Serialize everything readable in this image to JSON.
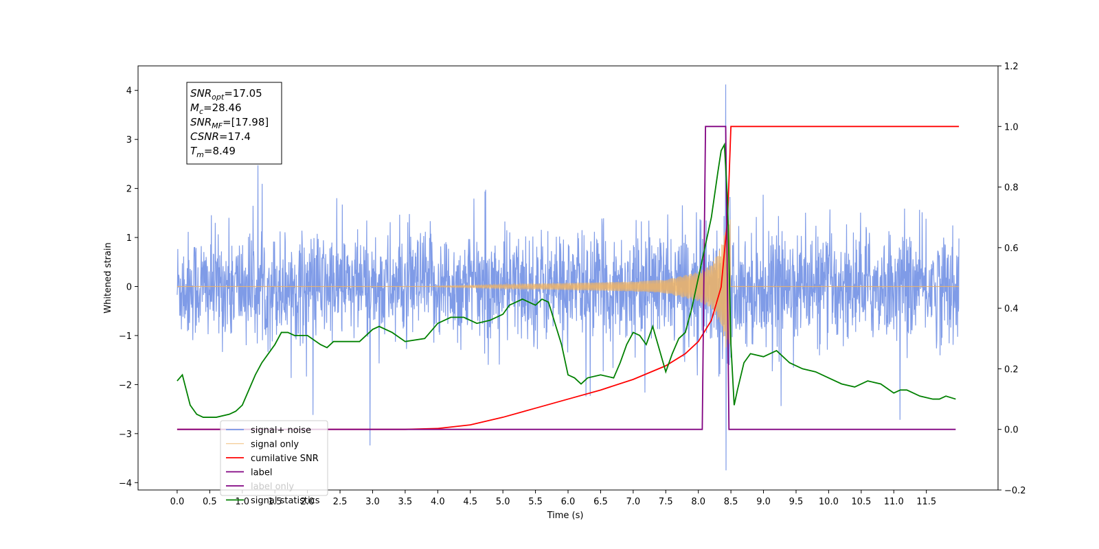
{
  "chart_data": {
    "type": "line",
    "xlabel": "Time (s)",
    "ylabel": "Whitened strain",
    "xlim": [
      -0.6,
      12.6
    ],
    "ylim": [
      -4.15,
      4.5
    ],
    "y2lim": [
      -0.2,
      1.2
    ],
    "x_ticks": [
      "0.0",
      "0.5",
      "1.0",
      "1.5",
      "2.0",
      "2.5",
      "3.0",
      "3.5",
      "4.0",
      "4.5",
      "5.0",
      "5.5",
      "6.0",
      "6.5",
      "7.0",
      "7.5",
      "8.0",
      "8.5",
      "9.0",
      "9.5",
      "10.0",
      "10.5",
      "11.0",
      "11.5"
    ],
    "y_ticks": [
      "4",
      "3",
      "2",
      "1",
      "0",
      "−1",
      "−2",
      "−3",
      "−4"
    ],
    "y2_ticks": [
      "1.2",
      "1.0",
      "0.8",
      "0.6",
      "0.4",
      "0.2",
      "0.0",
      "−0.2"
    ],
    "grid": false,
    "legend_position": "lower-left",
    "annotation": {
      "lines": [
        {
          "var": "SNR",
          "sub": "opt",
          "value": "=17.05"
        },
        {
          "var": "M",
          "sub": "c",
          "value": "=28.46"
        },
        {
          "var": "SNR",
          "sub": "MF",
          "value": "=[17.98]"
        },
        {
          "var": "CSNR",
          "sub": "",
          "value": "=17.4"
        },
        {
          "var": "T",
          "sub": "m",
          "value": "=8.49"
        }
      ]
    },
    "series": [
      {
        "name": "signal+ noise",
        "axis": "left",
        "color": "#7896e6",
        "description_note_free": true,
        "x_start": 0.0,
        "x_end": 12.0,
        "noise_sigma": 0.55,
        "peak": {
          "x": 8.42,
          "max": 4.12,
          "min": -3.75
        }
      },
      {
        "name": "signal only",
        "axis": "left",
        "color": "#f0b464",
        "x_start": 0.0,
        "x_end": 8.49,
        "chirp_amp": [
          [
            4.0,
            0.01
          ],
          [
            5.0,
            0.04
          ],
          [
            6.0,
            0.07
          ],
          [
            7.0,
            0.1
          ],
          [
            7.5,
            0.14
          ],
          [
            8.0,
            0.3
          ],
          [
            8.2,
            0.45
          ],
          [
            8.35,
            0.8
          ],
          [
            8.45,
            1.4
          ]
        ]
      },
      {
        "name": "cumilative SNR",
        "axis": "right",
        "color": "#ff0000",
        "x": [
          0.0,
          3.5,
          4.0,
          4.5,
          5.0,
          5.5,
          6.0,
          6.5,
          7.0,
          7.5,
          7.8,
          8.0,
          8.2,
          8.35,
          8.45,
          8.5,
          12.0
        ],
        "y": [
          0.0,
          0.0,
          0.003,
          0.015,
          0.04,
          0.07,
          0.1,
          0.13,
          0.165,
          0.21,
          0.25,
          0.29,
          0.36,
          0.47,
          0.7,
          1.0,
          1.0
        ]
      },
      {
        "name": "label",
        "axis": "right",
        "color": "#800080",
        "x": [
          0.0,
          8.06,
          8.11,
          8.42,
          8.47,
          11.95
        ],
        "y": [
          0.0,
          0.0,
          1.0,
          1.0,
          0.0,
          0.0
        ]
      },
      {
        "name": "label only",
        "axis": "right",
        "color": "#800080",
        "x": [],
        "y": []
      },
      {
        "name": "signal statistics",
        "axis": "right",
        "color": "#008000",
        "x": [
          0.0,
          0.08,
          0.2,
          0.3,
          0.4,
          0.6,
          0.8,
          0.9,
          1.0,
          1.2,
          1.3,
          1.5,
          1.6,
          1.7,
          1.8,
          2.0,
          2.2,
          2.3,
          2.4,
          2.6,
          2.8,
          3.0,
          3.1,
          3.3,
          3.5,
          3.8,
          4.0,
          4.2,
          4.4,
          4.6,
          4.8,
          5.0,
          5.1,
          5.2,
          5.3,
          5.4,
          5.5,
          5.6,
          5.7,
          5.8,
          5.9,
          6.0,
          6.1,
          6.2,
          6.3,
          6.5,
          6.7,
          6.8,
          6.9,
          7.0,
          7.1,
          7.2,
          7.3,
          7.5,
          7.6,
          7.7,
          7.8,
          7.9,
          8.0,
          8.1,
          8.2,
          8.3,
          8.35,
          8.4,
          8.45,
          8.5,
          8.55,
          8.6,
          8.7,
          8.8,
          9.0,
          9.2,
          9.4,
          9.6,
          9.8,
          10.0,
          10.2,
          10.4,
          10.6,
          10.8,
          11.0,
          11.1,
          11.2,
          11.4,
          11.6,
          11.7,
          11.8,
          11.95
        ],
        "y": [
          0.16,
          0.18,
          0.08,
          0.05,
          0.04,
          0.04,
          0.05,
          0.06,
          0.08,
          0.18,
          0.22,
          0.28,
          0.32,
          0.32,
          0.31,
          0.31,
          0.28,
          0.27,
          0.29,
          0.29,
          0.29,
          0.33,
          0.34,
          0.32,
          0.29,
          0.3,
          0.35,
          0.37,
          0.37,
          0.35,
          0.36,
          0.38,
          0.41,
          0.42,
          0.43,
          0.42,
          0.41,
          0.43,
          0.42,
          0.35,
          0.28,
          0.18,
          0.17,
          0.15,
          0.17,
          0.18,
          0.17,
          0.22,
          0.28,
          0.32,
          0.31,
          0.28,
          0.34,
          0.19,
          0.25,
          0.3,
          0.32,
          0.4,
          0.5,
          0.6,
          0.7,
          0.85,
          0.92,
          0.94,
          0.75,
          0.28,
          0.08,
          0.13,
          0.22,
          0.25,
          0.24,
          0.26,
          0.22,
          0.2,
          0.19,
          0.17,
          0.15,
          0.14,
          0.16,
          0.15,
          0.12,
          0.13,
          0.13,
          0.11,
          0.1,
          0.1,
          0.11,
          0.1
        ]
      }
    ]
  },
  "colors": {
    "noise": "#7896e6",
    "signal": "#f0b464",
    "csnr": "#ff0000",
    "label": "#800080",
    "stats": "#008000"
  }
}
